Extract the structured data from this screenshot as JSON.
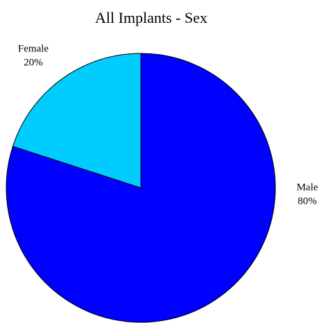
{
  "chart_data": {
    "type": "pie",
    "title": "All Implants - Sex",
    "categories": [
      "Male",
      "Female"
    ],
    "values": [
      80,
      20
    ],
    "value_labels": [
      "80%",
      "20%"
    ],
    "colors": [
      "#0000ff",
      "#00ccff"
    ]
  }
}
